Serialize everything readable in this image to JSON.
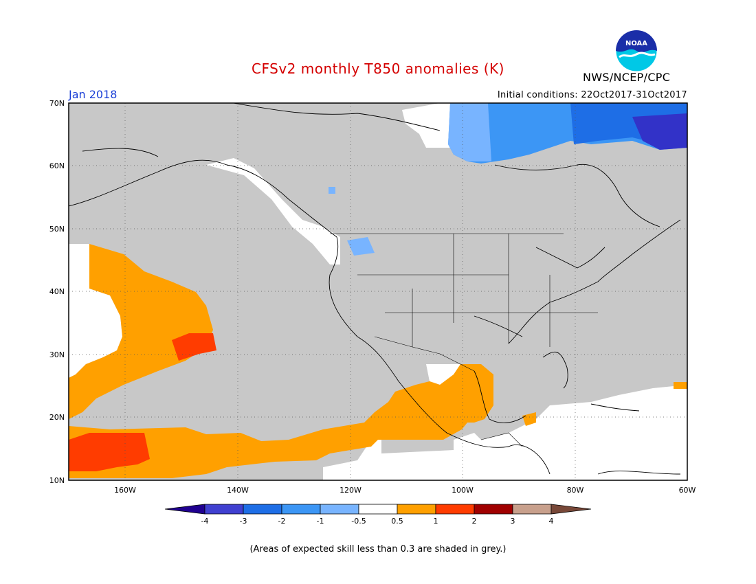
{
  "title": "CFSv2 monthly T850 anomalies (K)",
  "period": "Jan 2018",
  "initial_conditions": "Initial conditions: 22Oct2017-31Oct2017",
  "agency": "NWS/NCEP/CPC",
  "logo_text": "NOAA",
  "note": "(Areas of expected skill less than 0.3 are shaded in grey.)",
  "colors": {
    "grey_low_skill": "#c8c8c8",
    "neutral": "#ffffff",
    "orange": "#ffa000",
    "red_orange": "#ff3c00",
    "light_blue": "#78b4ff",
    "mid_blue": "#3c96f5",
    "blue": "#1e6ee6",
    "dark_blue": "#1450d2",
    "indigo": "#3232c8"
  },
  "map": {
    "lon_ticks": [
      "160W",
      "140W",
      "120W",
      "100W",
      "80W",
      "60W"
    ],
    "lat_ticks": [
      "70N",
      "60N",
      "50N",
      "40N",
      "30N",
      "20N",
      "10N"
    ]
  },
  "colorbar": {
    "labels": [
      "-4",
      "-3",
      "-2",
      "-1",
      "-0.5",
      "0.5",
      "1",
      "2",
      "3",
      "4"
    ],
    "colors": [
      "#200090",
      "#4040d0",
      "#1e6ee6",
      "#3c96f5",
      "#78b4ff",
      "#ffffff",
      "#ffa000",
      "#ff3c00",
      "#a00000",
      "#c8a08c",
      "#784838"
    ]
  }
}
